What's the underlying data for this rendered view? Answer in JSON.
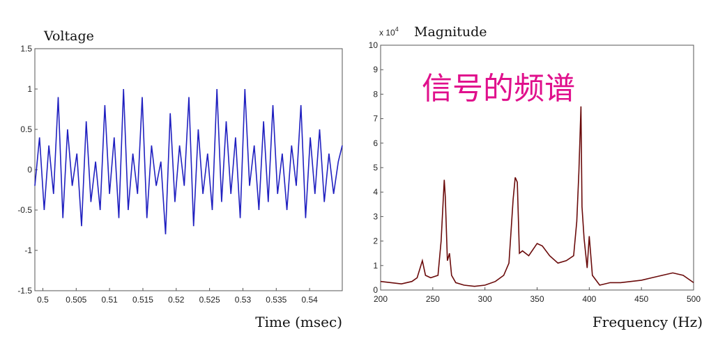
{
  "chart_data": [
    {
      "type": "line",
      "title": "Voltage",
      "xlabel": "Time (msec)",
      "ylabel": "",
      "xlim": [
        0.4988,
        0.5449
      ],
      "ylim": [
        -1.5,
        1.5
      ],
      "xticks": [
        "0.5",
        "0.505",
        "0.51",
        "0.515",
        "0.52",
        "0.525",
        "0.53",
        "0.535",
        "0.54"
      ],
      "yticks": [
        "-1.5",
        "-1",
        "-0.5",
        "0",
        "0.5",
        "1",
        "1.5"
      ],
      "grid": false,
      "color": "#2020c0",
      "series": [
        {
          "x": [
            0.4988,
            0.4995,
            0.5002,
            0.5009,
            0.5016,
            0.5023,
            0.503,
            0.5037,
            0.5044,
            0.5051,
            0.5058,
            0.5065,
            0.5072,
            0.5079,
            0.5086,
            0.5093,
            0.51,
            0.5107,
            0.5114,
            0.5121,
            0.5128,
            0.5135,
            0.5142,
            0.5149,
            0.5156,
            0.5163,
            0.517,
            0.5177,
            0.5184,
            0.5191,
            0.5198,
            0.5205,
            0.5212,
            0.5219,
            0.5226,
            0.5233,
            0.524,
            0.5247,
            0.5254,
            0.5261,
            0.5268,
            0.5275,
            0.5282,
            0.5289,
            0.5296,
            0.5303,
            0.531,
            0.5317,
            0.5324,
            0.5331,
            0.5338,
            0.5345,
            0.5352,
            0.5359,
            0.5366,
            0.5373,
            0.538,
            0.5387,
            0.5394,
            0.5401,
            0.5408,
            0.5415,
            0.5422,
            0.5429,
            0.5436,
            0.5443,
            0.5449
          ],
          "y": [
            -0.2,
            0.4,
            -0.5,
            0.3,
            -0.3,
            0.9,
            -0.6,
            0.5,
            -0.2,
            0.2,
            -0.7,
            0.6,
            -0.4,
            0.1,
            -0.5,
            0.8,
            -0.3,
            0.4,
            -0.6,
            1.0,
            -0.5,
            0.2,
            -0.3,
            0.9,
            -0.6,
            0.3,
            -0.2,
            0.1,
            -0.8,
            0.7,
            -0.4,
            0.3,
            -0.2,
            0.9,
            -0.7,
            0.5,
            -0.3,
            0.2,
            -0.5,
            1.0,
            -0.4,
            0.6,
            -0.3,
            0.4,
            -0.6,
            1.0,
            -0.2,
            0.3,
            -0.5,
            0.6,
            -0.4,
            0.8,
            -0.3,
            0.2,
            -0.5,
            0.3,
            -0.2,
            0.8,
            -0.6,
            0.4,
            -0.3,
            0.5,
            -0.4,
            0.2,
            -0.3,
            0.1,
            0.3
          ]
        }
      ]
    },
    {
      "type": "line",
      "title": "Magnitude",
      "scale_note": "x 10^4",
      "xlabel": "Frequency (Hz)",
      "ylabel": "",
      "xlim": [
        200,
        500
      ],
      "ylim": [
        0,
        10
      ],
      "xticks": [
        "200",
        "250",
        "300",
        "350",
        "400",
        "450",
        "500"
      ],
      "yticks": [
        "0",
        "1",
        "2",
        "3",
        "4",
        "5",
        "6",
        "7",
        "8",
        "9",
        "10"
      ],
      "grid": false,
      "color": "#6a0a0a",
      "series": [
        {
          "x": [
            200,
            210,
            220,
            230,
            235,
            240,
            243,
            248,
            255,
            258,
            261,
            262,
            264,
            266,
            268,
            272,
            280,
            290,
            300,
            310,
            318,
            323,
            327,
            329,
            331,
            333,
            336,
            342,
            350,
            355,
            362,
            370,
            378,
            385,
            388,
            390,
            392,
            393,
            395,
            398,
            400,
            403,
            410,
            420,
            430,
            440,
            450,
            460,
            470,
            480,
            490,
            500
          ],
          "y": [
            0.35,
            0.3,
            0.25,
            0.35,
            0.5,
            1.2,
            0.6,
            0.5,
            0.6,
            2.0,
            4.5,
            3.8,
            1.2,
            1.5,
            0.6,
            0.3,
            0.2,
            0.15,
            0.2,
            0.35,
            0.6,
            1.1,
            3.7,
            4.6,
            4.4,
            1.5,
            1.6,
            1.4,
            1.9,
            1.8,
            1.4,
            1.1,
            1.2,
            1.4,
            2.8,
            4.8,
            7.5,
            3.4,
            2.1,
            0.9,
            2.2,
            0.6,
            0.2,
            0.3,
            0.3,
            0.35,
            0.4,
            0.5,
            0.6,
            0.7,
            0.6,
            0.3
          ]
        }
      ]
    }
  ],
  "annotation": "信号的频谱"
}
